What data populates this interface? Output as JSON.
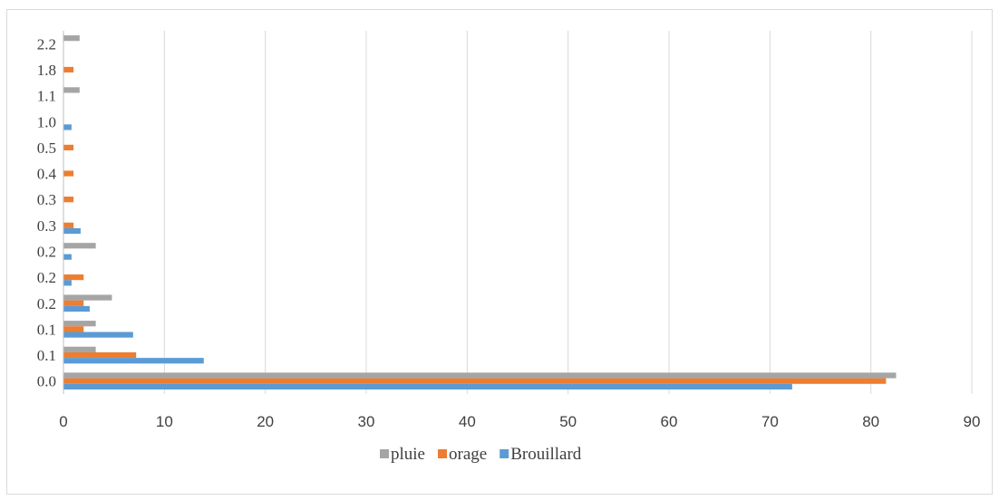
{
  "chart_data": {
    "type": "bar",
    "orientation": "horizontal",
    "title": "",
    "xlabel": "",
    "ylabel": "",
    "categories": [
      "0.0",
      "0.1",
      "0.1",
      "0.2",
      "0.2",
      "0.2",
      "0.3",
      "0.3",
      "0.4",
      "0.5",
      "1.0",
      "1.1",
      "1.8",
      "2.2"
    ],
    "series": [
      {
        "name": "Brouillard",
        "color": "#5b9bd5",
        "values": [
          72.2,
          13.9,
          6.9,
          2.6,
          0.8,
          0.8,
          1.7,
          0,
          0,
          0,
          0.8,
          0,
          0,
          0
        ]
      },
      {
        "name": "orage",
        "color": "#ed7d31",
        "values": [
          81.5,
          7.2,
          2.0,
          2.0,
          2.0,
          0,
          1.0,
          1.0,
          1.0,
          1.0,
          0,
          0,
          1.0,
          0
        ]
      },
      {
        "name": "pluie",
        "color": "#a5a5a5",
        "values": [
          82.5,
          3.2,
          3.2,
          4.8,
          0,
          3.2,
          0,
          0,
          0,
          0,
          0,
          1.6,
          0,
          1.6
        ]
      }
    ],
    "xlim": [
      0,
      90
    ],
    "xticks": [
      "0",
      "10",
      "20",
      "30",
      "40",
      "50",
      "60",
      "70",
      "80",
      "90"
    ],
    "grid": true,
    "legend_position": "bottom",
    "legend_order": [
      "pluie",
      "orage",
      "Brouillard"
    ]
  }
}
